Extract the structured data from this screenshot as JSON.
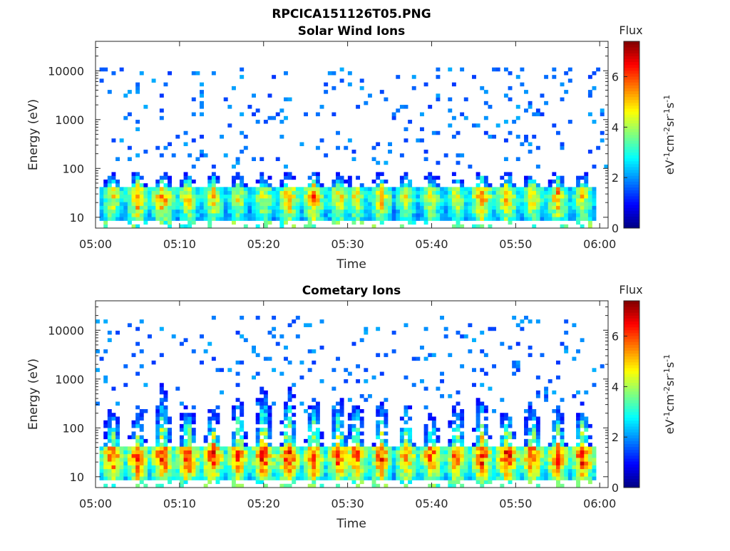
{
  "figure": {
    "title": "RPCICA151126T05.PNG"
  },
  "colors": {
    "axis": "#262626",
    "background": "#ffffff",
    "colormap": "jet"
  },
  "chart_data": [
    {
      "type": "heatmap",
      "title": "Solar Wind Ions",
      "xlabel": "Time",
      "ylabel": "Energy (eV)",
      "yscale": "log",
      "ylim": [
        6,
        40000
      ],
      "xlim": [
        "05:00",
        "06:01"
      ],
      "xticks": [
        "05:00",
        "05:10",
        "05:20",
        "05:30",
        "05:40",
        "05:50",
        "06:00"
      ],
      "yticks": [
        "10",
        "100",
        "1000",
        "10000"
      ],
      "colorbar": {
        "label": "Flux",
        "unit": "eV-1cm-2sr-1s-1",
        "ticks": [
          "0",
          "2",
          "4",
          "6"
        ],
        "range": [
          0,
          7.4
        ]
      },
      "pattern": {
        "scan_minutes": [
          2,
          5,
          8,
          11,
          14,
          17,
          20,
          23,
          26,
          29,
          31,
          34,
          37,
          40,
          43,
          46,
          49,
          52,
          55,
          58
        ],
        "peak_flux": [
          5.0,
          5.8,
          6.0,
          5.2,
          5.4,
          4.8,
          5.0,
          5.6,
          5.8,
          5.2,
          5.0,
          5.4,
          4.8,
          5.0,
          4.8,
          6.0,
          5.6,
          5.2,
          5.6,
          5.0
        ],
        "core_energy_eV": [
          15,
          45
        ],
        "sparse_energy_eV": [
          100,
          12000
        ],
        "sparse_flux": 1.3
      }
    },
    {
      "type": "heatmap",
      "title": "Cometary Ions",
      "xlabel": "Time",
      "ylabel": "Energy (eV)",
      "yscale": "log",
      "ylim": [
        6,
        40000
      ],
      "xlim": [
        "05:00",
        "06:01"
      ],
      "xticks": [
        "05:00",
        "05:10",
        "05:20",
        "05:30",
        "05:40",
        "05:50",
        "06:00"
      ],
      "yticks": [
        "10",
        "100",
        "1000",
        "10000"
      ],
      "colorbar": {
        "label": "Flux",
        "unit": "eV-1cm-2sr-1s-1",
        "ticks": [
          "0",
          "2",
          "4",
          "6"
        ],
        "range": [
          0,
          7.4
        ]
      },
      "pattern": {
        "scan_minutes": [
          2,
          5,
          8,
          11,
          14,
          17,
          20,
          23,
          26,
          29,
          31,
          34,
          37,
          40,
          43,
          46,
          49,
          52,
          55,
          58
        ],
        "peak_flux": [
          6.4,
          6.6,
          6.8,
          6.8,
          6.6,
          6.4,
          6.8,
          6.8,
          6.4,
          6.6,
          6.4,
          6.4,
          6.0,
          6.4,
          6.2,
          6.6,
          6.8,
          6.6,
          6.6,
          6.8
        ],
        "core_energy_eV": [
          15,
          45
        ],
        "plume_top_eV": [
          400,
          350,
          1500,
          500,
          400,
          700,
          1500,
          1200,
          800,
          900,
          600,
          500,
          600,
          300,
          600,
          800,
          400,
          500,
          400,
          600
        ],
        "sparse_energy_eV": [
          200,
          20000
        ],
        "sparse_flux": 1.3
      }
    }
  ]
}
